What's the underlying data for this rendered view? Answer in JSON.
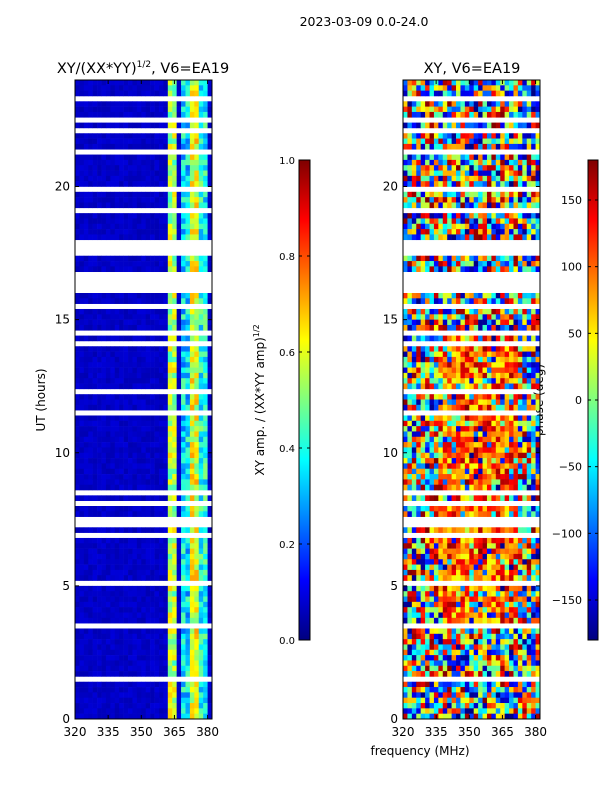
{
  "suptitle": "2023-03-09 0.0-24.0",
  "shared_xlabel": "frequency (MHz)",
  "colors": {
    "jet": [
      "#00007f",
      "#0000ff",
      "#007fff",
      "#00ffff",
      "#7fff7f",
      "#ffff00",
      "#ff7f00",
      "#ff0000",
      "#7f0000"
    ],
    "axis": "#000000",
    "background": "#ffffff"
  },
  "chart_data": [
    {
      "type": "heatmap",
      "title_main": "XY/(XX*YY)",
      "title_sup": "1/2",
      "title_tail": ", V6=EA19",
      "xlabel": "",
      "ylabel": "UT (hours)",
      "xlim": [
        320,
        382
      ],
      "ylim": [
        0,
        24
      ],
      "xticks": [
        320,
        335,
        350,
        365,
        380
      ],
      "yticks": [
        0,
        5,
        10,
        15,
        20
      ],
      "colorbar": {
        "label_main": "XY amp. / (XX*YY amp)",
        "label_sup": "1/2",
        "range": [
          0.0,
          1.0
        ],
        "ticks": [
          "0.0",
          "0.2",
          "0.4",
          "0.6",
          "0.8",
          "1.0"
        ]
      },
      "description": "Normalized cross-correlation amplitude; mostly low (~0.05) across 320-362 MHz with bright bands (~0.4-0.6) between 362-382 MHz",
      "value_model": {
        "base": 0.05,
        "bands": [
          [
            363,
            366,
            0.55
          ],
          [
            368,
            372,
            0.35
          ],
          [
            373,
            376,
            0.6
          ],
          [
            377,
            380,
            0.4
          ]
        ]
      },
      "gaps_hours": [
        [
          0.55,
          0.65
        ],
        [
          1.4,
          1.65
        ],
        [
          1.95,
          2.05
        ],
        [
          2.9,
          3.0
        ],
        [
          3.45,
          3.6
        ],
        [
          4.4,
          4.5
        ],
        [
          5.05,
          5.15
        ],
        [
          5.95,
          6.05
        ],
        [
          6.8,
          6.9
        ],
        [
          7.3,
          7.55
        ],
        [
          8.05,
          8.15
        ],
        [
          8.45,
          8.55
        ],
        [
          8.8,
          8.9
        ],
        [
          9.95,
          10.05
        ],
        [
          11.45,
          11.55
        ],
        [
          12.2,
          12.35
        ],
        [
          12.55,
          12.65
        ],
        [
          13.75,
          13.85
        ],
        [
          14.1,
          14.2
        ],
        [
          14.45,
          14.55
        ],
        [
          15.45,
          15.55
        ],
        [
          16.1,
          16.9
        ],
        [
          17.4,
          18.0
        ],
        [
          18.15,
          18.3
        ],
        [
          19.1,
          19.3
        ],
        [
          19.85,
          19.95
        ],
        [
          20.6,
          20.7
        ],
        [
          21.3,
          21.45
        ],
        [
          21.75,
          21.85
        ],
        [
          22.05,
          22.15
        ],
        [
          22.4,
          22.6
        ],
        [
          22.95,
          23.05
        ],
        [
          23.3,
          23.5
        ],
        [
          23.6,
          23.65
        ],
        [
          23.75,
          23.85
        ]
      ]
    },
    {
      "type": "heatmap",
      "title_main": "XY, V6=EA19",
      "title_sup": "",
      "title_tail": "",
      "xlabel": "",
      "ylabel": "",
      "xlim": [
        320,
        382
      ],
      "ylim": [
        0,
        24
      ],
      "xticks": [
        320,
        335,
        350,
        365,
        380
      ],
      "yticks": [
        0,
        5,
        10,
        15,
        20
      ],
      "colorbar": {
        "label_main": "phase (deg)",
        "label_sup": "",
        "range": [
          -180,
          180
        ],
        "ticks": [
          "−150",
          "−100",
          "−50",
          "0",
          "50",
          "100",
          "150"
        ],
        "tick_values": [
          -150,
          -100,
          -50,
          0,
          50,
          100,
          150
        ]
      },
      "description": "Cross-correlation phase in degrees; noisy mix of all phases with red/orange regions across 335-370 MHz between ~4-14 h",
      "gaps_hours": [
        [
          0.55,
          0.65
        ],
        [
          1.4,
          1.65
        ],
        [
          1.95,
          2.05
        ],
        [
          2.9,
          3.0
        ],
        [
          3.45,
          3.6
        ],
        [
          4.4,
          4.5
        ],
        [
          5.05,
          5.15
        ],
        [
          5.95,
          6.05
        ],
        [
          6.8,
          6.9
        ],
        [
          7.3,
          7.55
        ],
        [
          8.05,
          8.15
        ],
        [
          8.45,
          8.55
        ],
        [
          8.8,
          8.9
        ],
        [
          9.95,
          10.05
        ],
        [
          11.45,
          11.55
        ],
        [
          12.2,
          12.35
        ],
        [
          12.55,
          12.65
        ],
        [
          13.75,
          13.85
        ],
        [
          14.1,
          14.2
        ],
        [
          14.45,
          14.55
        ],
        [
          15.45,
          15.55
        ],
        [
          16.1,
          16.9
        ],
        [
          17.4,
          18.0
        ],
        [
          18.15,
          18.3
        ],
        [
          19.1,
          19.3
        ],
        [
          19.85,
          19.95
        ],
        [
          20.6,
          20.7
        ],
        [
          21.3,
          21.45
        ],
        [
          21.75,
          21.85
        ],
        [
          22.05,
          22.15
        ],
        [
          22.4,
          22.6
        ],
        [
          22.95,
          23.05
        ],
        [
          23.3,
          23.5
        ],
        [
          23.6,
          23.65
        ],
        [
          23.75,
          23.85
        ]
      ]
    }
  ]
}
